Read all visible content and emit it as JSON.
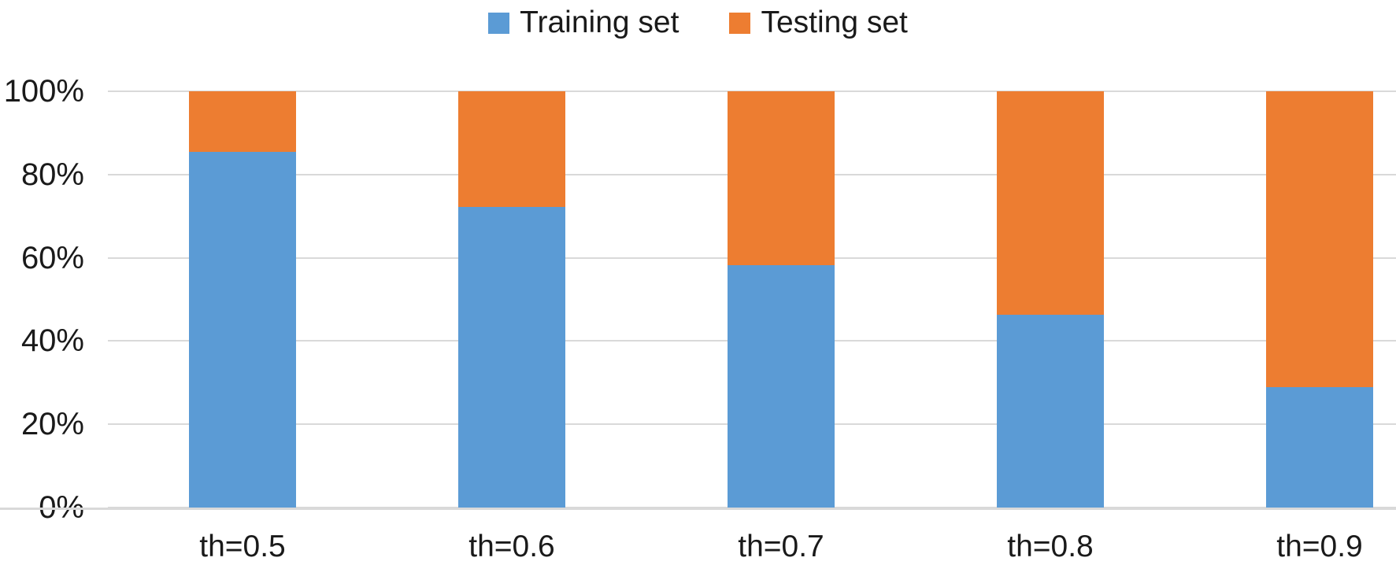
{
  "chart_data": {
    "type": "bar",
    "variant": "100%-stacked-column",
    "title": "",
    "xlabel": "",
    "ylabel": "",
    "categories": [
      "th=0.5",
      "th=0.6",
      "th=0.7",
      "th=0.8",
      "th=0.9"
    ],
    "series": [
      {
        "name": "Training set",
        "color": "#5B9BD5",
        "values": [
          85.5,
          72.3,
          58.3,
          46.4,
          28.9
        ]
      },
      {
        "name": "Testing set",
        "color": "#ED7D31",
        "values": [
          14.5,
          27.7,
          41.7,
          53.6,
          71.1
        ]
      }
    ],
    "ylim": [
      0,
      100
    ],
    "y_ticks": [
      {
        "value": 100,
        "label": "100%"
      },
      {
        "value": 80,
        "label": "80%"
      },
      {
        "value": 60,
        "label": "60%"
      },
      {
        "value": 40,
        "label": "40%"
      },
      {
        "value": 20,
        "label": "20%"
      },
      {
        "value": 0,
        "label": "0%"
      }
    ],
    "grid": true,
    "gridline_color": "#D9D9D9",
    "legend_position": "top",
    "legend": [
      {
        "label": "Training set",
        "color": "#5B9BD5"
      },
      {
        "label": "Testing set",
        "color": "#ED7D31"
      }
    ]
  }
}
